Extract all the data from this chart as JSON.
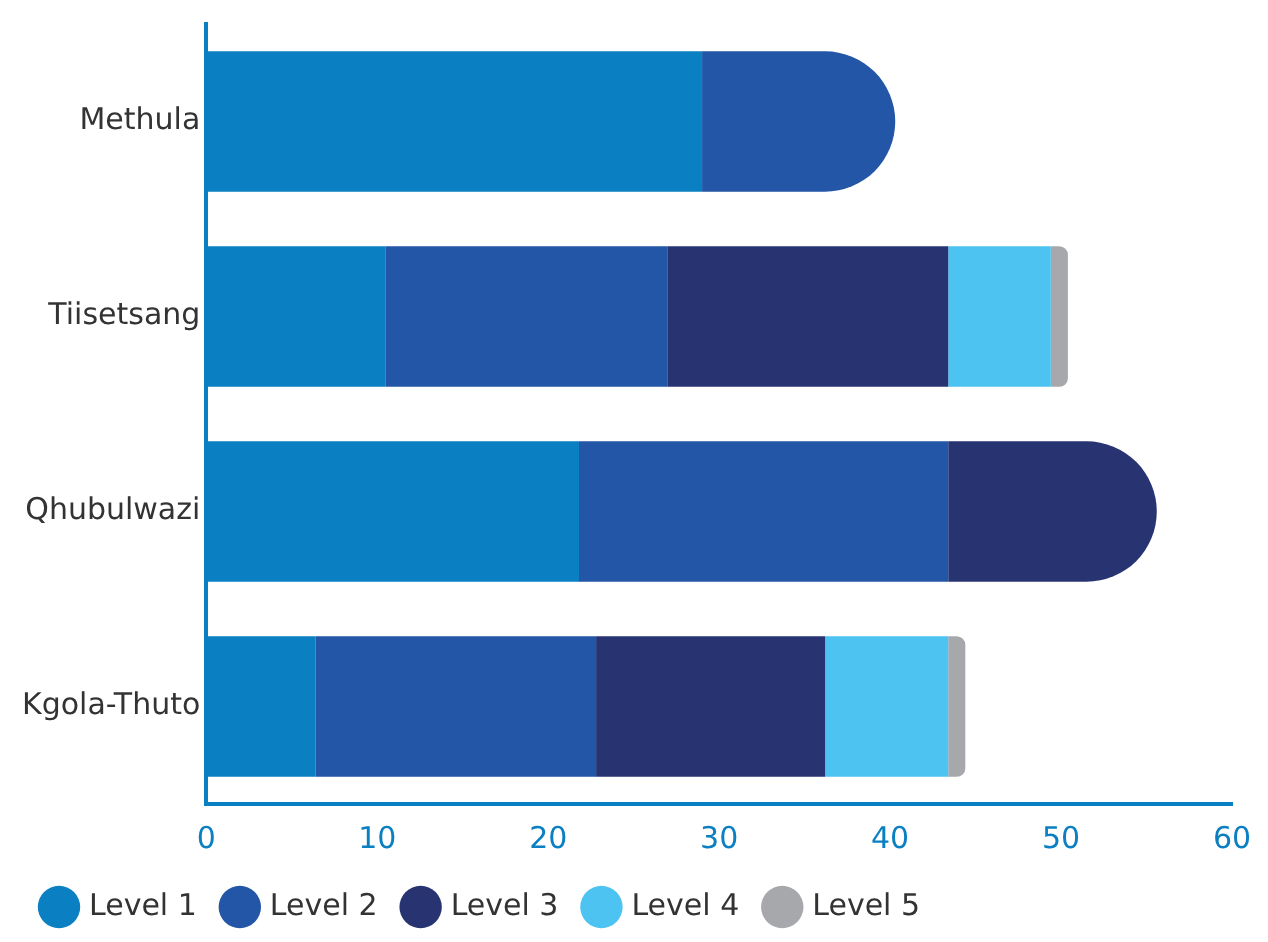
{
  "chart_data": {
    "type": "bar",
    "orientation": "horizontal",
    "stacked": true,
    "categories": [
      "Methula",
      "Tiisetsang",
      "Qhubulwazi",
      "Kgola-Thuto"
    ],
    "series": [
      {
        "name": "Level 1",
        "color": "#0a7fc2",
        "values": [
          29,
          10.5,
          21.8,
          6.4
        ]
      },
      {
        "name": "Level 2",
        "color": "#2356a6",
        "values": [
          11.3,
          16.5,
          21.6,
          16.4
        ]
      },
      {
        "name": "Level 3",
        "color": "#283471",
        "values": [
          null,
          16.4,
          12.2,
          13.4
        ]
      },
      {
        "name": "Level 4",
        "color": "#4cc3f0",
        "values": [
          null,
          6,
          null,
          7.2
        ]
      },
      {
        "name": "Level 5",
        "color": "#a7a8ac",
        "values": [
          null,
          1,
          null,
          1
        ]
      }
    ],
    "xlim": [
      0,
      60
    ],
    "xticks": [
      0,
      10,
      20,
      30,
      40,
      50,
      60
    ],
    "grid": false,
    "legend": "bottom"
  }
}
